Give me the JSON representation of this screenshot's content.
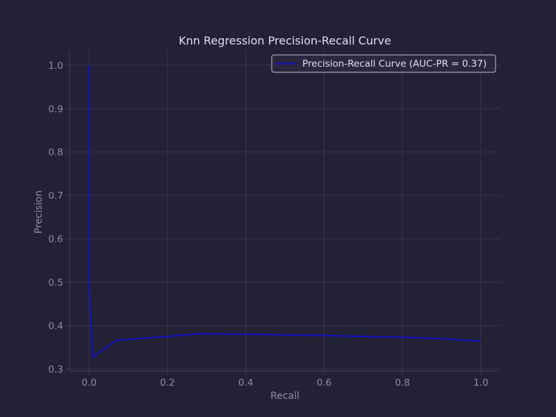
{
  "chart_data": {
    "type": "line",
    "title": "Knn Regression Precision-Recall Curve",
    "xlabel": "Recall",
    "ylabel": "Precision",
    "xlim": [
      -0.05,
      1.05
    ],
    "ylim": [
      0.295,
      1.035
    ],
    "xticks": [
      0.0,
      0.2,
      0.4,
      0.6,
      0.8,
      1.0
    ],
    "xtick_labels": [
      "0.0",
      "0.2",
      "0.4",
      "0.6",
      "0.8",
      "1.0"
    ],
    "yticks": [
      0.3,
      0.4,
      0.5,
      0.6,
      0.7,
      0.8,
      0.9,
      1.0
    ],
    "ytick_labels": [
      "0.3",
      "0.4",
      "0.5",
      "0.6",
      "0.7",
      "0.8",
      "0.9",
      "1.0"
    ],
    "grid": true,
    "legend_position": "top-right",
    "series": [
      {
        "name": "Precision-Recall Curve (AUC-PR = 0.37)",
        "color": "#1010c8",
        "x": [
          0.0,
          0.0,
          0.01,
          0.07,
          0.2,
          0.28,
          0.4,
          0.6,
          0.8,
          0.9,
          1.0
        ],
        "y": [
          1.0,
          0.5,
          0.328,
          0.366,
          0.375,
          0.381,
          0.38,
          0.377,
          0.373,
          0.37,
          0.364
        ]
      }
    ]
  },
  "colors": {
    "background": "#232136",
    "text": "#e0def4",
    "muted_text": "#908caa",
    "grid": "#393552",
    "legend_border": "#c4c2d6"
  }
}
